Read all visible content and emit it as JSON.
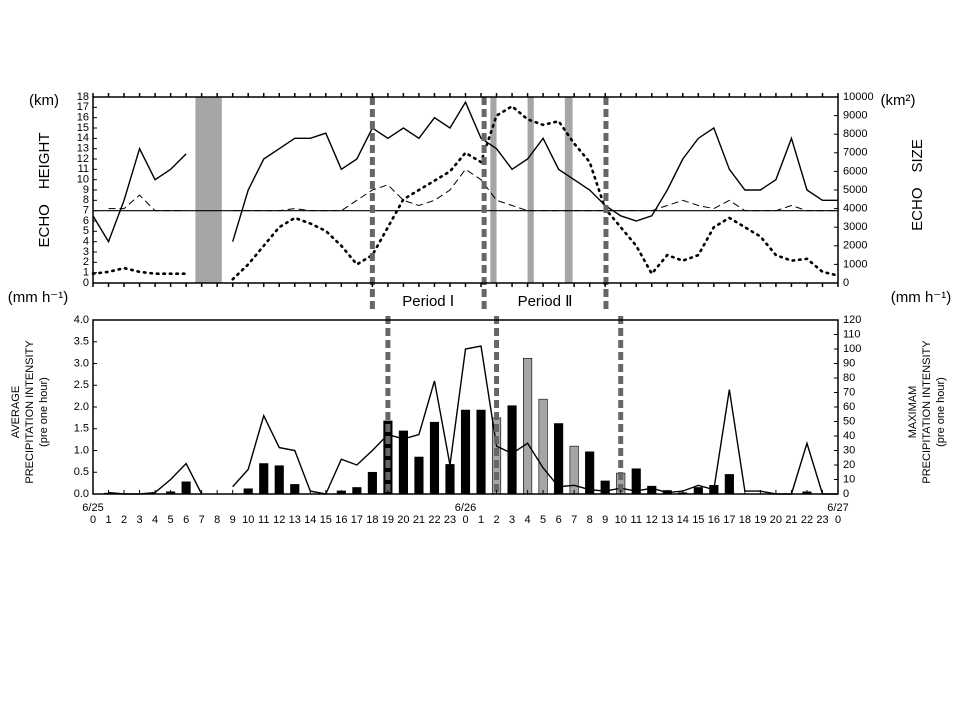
{
  "chart_data": [
    {
      "type": "line",
      "y_unit": "(km)",
      "y2_unit": "(km²)",
      "ylabel": "ECHO　HEIGHT",
      "y2label": "ECHO　SIZE",
      "xlim": [
        0,
        48
      ],
      "ylim": [
        0,
        18
      ],
      "y2lim": [
        0,
        10000
      ],
      "yticks": [
        0,
        1,
        2,
        3,
        4,
        5,
        6,
        7,
        8,
        9,
        10,
        11,
        12,
        13,
        14,
        15,
        16,
        17,
        18
      ],
      "y2ticks": [
        0,
        1000,
        2000,
        3000,
        4000,
        5000,
        6000,
        7000,
        8000,
        9000,
        10000
      ],
      "hline": 7,
      "shaded": [
        [
          6.6,
          8.3
        ],
        [
          25.6,
          26.0
        ],
        [
          28.0,
          28.4
        ],
        [
          30.4,
          30.9
        ]
      ],
      "shade_color": "#a6a6a6",
      "vlines": [
        18.0,
        25.2,
        33.05
      ],
      "period_labels": [
        "Period Ⅰ",
        "Period Ⅱ"
      ],
      "x": [
        0,
        1,
        2,
        3,
        4,
        5,
        6,
        7,
        8,
        9,
        10,
        11,
        12,
        13,
        14,
        15,
        16,
        17,
        18,
        19,
        20,
        21,
        22,
        23,
        24,
        25,
        26,
        27,
        28,
        29,
        30,
        31,
        32,
        33,
        34,
        35,
        36,
        37,
        38,
        39,
        40,
        41,
        42,
        43,
        44,
        45,
        46,
        47,
        48
      ],
      "series": [
        {
          "style": "solid",
          "color": "#000000",
          "values": [
            6.5,
            4,
            8,
            13,
            10,
            11,
            12.5,
            null,
            null,
            4,
            9,
            12,
            13,
            14,
            14,
            14.5,
            11,
            12,
            15,
            14,
            15,
            14,
            16,
            15,
            17.5,
            14,
            13,
            11,
            12,
            14,
            11,
            10,
            9,
            7.5,
            6.5,
            6,
            6.5,
            9,
            12,
            14,
            15,
            11,
            9,
            9,
            10,
            14,
            9,
            8,
            8
          ]
        },
        {
          "style": "dashed",
          "color": "#000000",
          "values": [
            null,
            7.2,
            7.2,
            8.5,
            7,
            7,
            7,
            null,
            null,
            7,
            7,
            7,
            7,
            7.2,
            7,
            7,
            7,
            8,
            9,
            9.5,
            8,
            7.5,
            8,
            9,
            11,
            10,
            8,
            7.5,
            7,
            7,
            7,
            7,
            7,
            7,
            7,
            7,
            7,
            7.5,
            8,
            7.5,
            7.2,
            8,
            7,
            7,
            7,
            7.5,
            7,
            7,
            7
          ]
        },
        {
          "style": "dotted",
          "color": "#000000",
          "axis": "y2",
          "values": [
            500,
            600,
            800,
            600,
            500,
            500,
            500,
            null,
            null,
            200,
            1000,
            2000,
            3000,
            3500,
            3200,
            2800,
            2000,
            1000,
            1500,
            3000,
            4500,
            5000,
            5500,
            6000,
            7000,
            6500,
            9000,
            9500,
            8800,
            8500,
            8700,
            7500,
            6500,
            4000,
            3000,
            2000,
            500,
            1500,
            1200,
            1500,
            3000,
            3500,
            3000,
            2500,
            1500,
            1200,
            1300,
            600,
            400
          ]
        }
      ]
    },
    {
      "type": "bar",
      "y_unit": "(mm h⁻¹)",
      "y2_unit": "(mm h⁻¹)",
      "ylabel": [
        "AVERAGE",
        "PRECIPITATION INTENSITY",
        "(pre one hour)"
      ],
      "y2label": [
        "MAXIMAM",
        "PRECIPITATION INTENSITY",
        "(pre one hour)"
      ],
      "xlim": [
        0,
        48
      ],
      "ylim": [
        0,
        4
      ],
      "y2lim": [
        0,
        120
      ],
      "yticks": [
        {
          "value": 0,
          "label": "0.0"
        },
        {
          "value": 0.5,
          "label": "0.5"
        },
        {
          "value": 1,
          "label": "1.0"
        },
        {
          "value": 1.5,
          "label": "1.5"
        },
        {
          "value": 2,
          "label": "2.0"
        },
        {
          "value": 2.5,
          "label": "2.5"
        },
        {
          "value": 3,
          "label": "3.0"
        },
        {
          "value": 3.5,
          "label": "3.5"
        },
        {
          "value": 4,
          "label": "4.0"
        }
      ],
      "y2ticks": [
        0,
        10,
        20,
        30,
        40,
        50,
        60,
        70,
        80,
        90,
        100,
        110,
        120
      ],
      "xticks": [
        0,
        1,
        2,
        3,
        4,
        5,
        6,
        7,
        8,
        9,
        10,
        11,
        12,
        13,
        14,
        15,
        16,
        17,
        18,
        19,
        20,
        21,
        22,
        23,
        {
          "value": 24,
          "label": "0"
        },
        {
          "value": 25,
          "label": "1"
        },
        {
          "value": 26,
          "label": "2"
        },
        {
          "value": 27,
          "label": "3"
        },
        {
          "value": 28,
          "label": "4"
        },
        {
          "value": 29,
          "label": "5"
        },
        {
          "value": 30,
          "label": "6"
        },
        {
          "value": 31,
          "label": "7"
        },
        {
          "value": 32,
          "label": "8"
        },
        {
          "value": 33,
          "label": "9"
        },
        {
          "value": 34,
          "label": "10"
        },
        {
          "value": 35,
          "label": "11"
        },
        {
          "value": 36,
          "label": "12"
        },
        {
          "value": 37,
          "label": "13"
        },
        {
          "value": 38,
          "label": "14"
        },
        {
          "value": 39,
          "label": "15"
        },
        {
          "value": 40,
          "label": "16"
        },
        {
          "value": 41,
          "label": "17"
        },
        {
          "value": 42,
          "label": "18"
        },
        {
          "value": 43,
          "label": "19"
        },
        {
          "value": 44,
          "label": "20"
        },
        {
          "value": 45,
          "label": "21"
        },
        {
          "value": 46,
          "label": "22"
        },
        {
          "value": 47,
          "label": "23"
        },
        {
          "value": 48,
          "label": "0"
        }
      ],
      "date_labels": [
        {
          "value": 0,
          "label": "6/25"
        },
        {
          "value": 24,
          "label": "6/26"
        },
        {
          "value": 48,
          "label": "6/27"
        }
      ],
      "vlines": [
        19.0,
        26.0,
        34.0
      ],
      "x": [
        0,
        1,
        2,
        3,
        4,
        5,
        6,
        7,
        8,
        9,
        10,
        11,
        12,
        13,
        14,
        15,
        16,
        17,
        18,
        19,
        20,
        21,
        22,
        23,
        24,
        25,
        26,
        27,
        28,
        29,
        30,
        31,
        32,
        33,
        34,
        35,
        36,
        37,
        38,
        39,
        40,
        41,
        42,
        43,
        44,
        45,
        46,
        47,
        48
      ],
      "series": [
        {
          "type": "bar",
          "values": [
            0,
            0.02,
            0,
            0,
            0,
            0.05,
            0.28,
            0,
            0,
            0,
            0.12,
            0.7,
            0.65,
            0.22,
            0,
            0,
            0.07,
            0.15,
            0.5,
            1.68,
            1.45,
            0.85,
            1.65,
            0.68,
            1.93,
            1.93,
            1.75,
            2.03,
            3.12,
            2.18,
            1.62,
            1.1,
            0.97,
            0.3,
            0.48,
            0.58,
            0.18,
            0.08,
            0.03,
            0.15,
            0.2,
            0.45,
            0,
            0,
            0,
            0,
            0.05,
            0,
            0
          ],
          "colors": [
            "#000",
            "#000",
            "#000",
            "#000",
            "#000",
            "#000",
            "#000",
            "#000",
            "#000",
            "#000",
            "#000",
            "#000",
            "#000",
            "#000",
            "#000",
            "#000",
            "#000",
            "#000",
            "#000",
            "#000",
            "#000",
            "#000",
            "#000",
            "#000",
            "#000",
            "#000",
            "#a6a6a6",
            "#000",
            "#a6a6a6",
            "#a6a6a6",
            "#000",
            "#a6a6a6",
            "#000",
            "#000",
            "#a6a6a6",
            "#000",
            "#000",
            "#000",
            "#000",
            "#000",
            "#000",
            "#000",
            "#000",
            "#000",
            "#000",
            "#000",
            "#000",
            "#000",
            "#000"
          ]
        },
        {
          "type": "line",
          "axis": "y2",
          "color": "#000000",
          "values": [
            null,
            1,
            0,
            0,
            1,
            10,
            21,
            0,
            null,
            5,
            17,
            54,
            32,
            30,
            2,
            0,
            24,
            20,
            30,
            41,
            38,
            41,
            78,
            20,
            100,
            102,
            33,
            28,
            35,
            18,
            5,
            6,
            3,
            2,
            4,
            2,
            4,
            1,
            2,
            6,
            3,
            72,
            2,
            2,
            0,
            0,
            35,
            0,
            0
          ]
        }
      ]
    }
  ]
}
